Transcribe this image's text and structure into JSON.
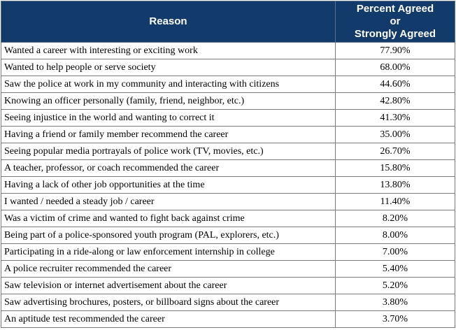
{
  "table": {
    "headers": {
      "reason": "Reason",
      "percent_lines": [
        "Percent Agreed",
        "or",
        "Strongly Agreed"
      ]
    },
    "rows": [
      {
        "reason": "Wanted a career with interesting or exciting work",
        "percent": "77.90%"
      },
      {
        "reason": "Wanted to help people or serve society",
        "percent": "68.00%"
      },
      {
        "reason": "Saw the police at work in my community and interacting with citizens",
        "percent": "44.60%"
      },
      {
        "reason": "Knowing an officer personally (family, friend, neighbor, etc.)",
        "percent": "42.80%"
      },
      {
        "reason": "Seeing injustice in the world and wanting to correct it",
        "percent": "41.30%"
      },
      {
        "reason": "Having a friend or family member recommend the career",
        "percent": "35.00%"
      },
      {
        "reason": "Seeing popular media portrayals of police work (TV, movies, etc.)",
        "percent": "26.70%"
      },
      {
        "reason": "A teacher, professor, or coach recommended the career",
        "percent": "15.80%"
      },
      {
        "reason": "Having a lack of other job opportunities at the time",
        "percent": "13.80%"
      },
      {
        "reason": "I wanted / needed a steady job / career",
        "percent": "11.40%"
      },
      {
        "reason": "Was a victim of crime and wanted to fight back against crime",
        "percent": "8.20%"
      },
      {
        "reason": "Being part of a police-sponsored youth program (PAL, explorers, etc.)",
        "percent": "8.00%"
      },
      {
        "reason": "Participating in a ride-along or law enforcement internship in college",
        "percent": "7.00%"
      },
      {
        "reason": "A police recruiter recommended the career",
        "percent": "5.40%"
      },
      {
        "reason": "Saw television or internet advertisement about the career",
        "percent": "5.20%"
      },
      {
        "reason": "Saw advertising brochures, posters, or billboard signs about the career",
        "percent": "3.80%"
      },
      {
        "reason": "An aptitude test recommended the career",
        "percent": "3.70%"
      }
    ]
  },
  "colors": {
    "header_background": "#123a6b",
    "header_text": "#ffffff"
  }
}
